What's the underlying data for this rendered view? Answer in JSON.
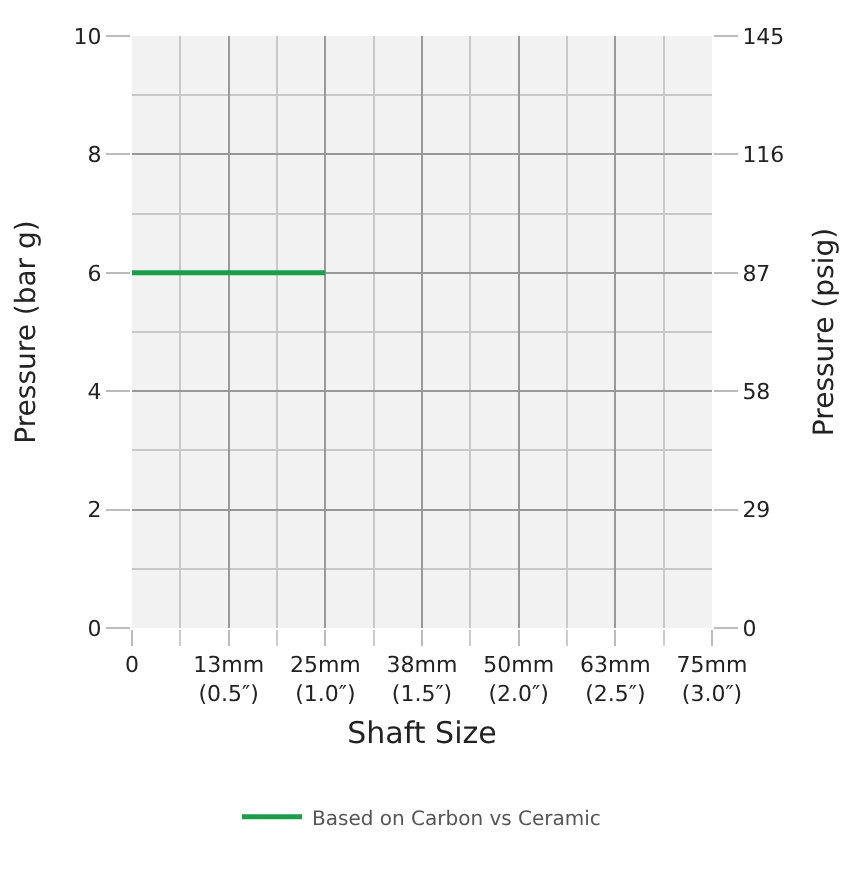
{
  "chart_data": {
    "type": "line",
    "xlabel": "Shaft Size",
    "ylabel": "Pressure (bar g)",
    "y2label": "Pressure (psig)",
    "categories": [
      "0",
      "13mm\n(0.5″)",
      "25mm\n(1.0″)",
      "38mm\n(1.5″)",
      "50mm\n(2.0″)",
      "63mm\n(2.5″)",
      "75mm\n(3.0″)"
    ],
    "series": [
      {
        "name": "Based on Carbon vs Ceramic",
        "color": "#1a9e4a",
        "values": [
          6,
          6,
          6,
          null,
          null,
          null,
          null
        ]
      }
    ],
    "ylim": [
      0,
      10
    ],
    "yticks": [
      0,
      2,
      4,
      6,
      8,
      10
    ],
    "y2lim": [
      0,
      145
    ],
    "y2ticks": [
      0,
      29,
      58,
      87,
      116,
      145
    ],
    "grid": true,
    "legend": "bottom",
    "marker": "none",
    "line_style": "solid"
  }
}
